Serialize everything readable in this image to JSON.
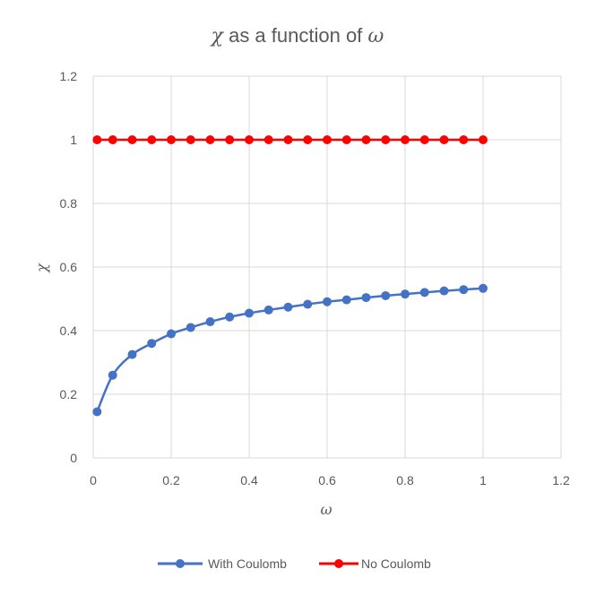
{
  "chart_data": {
    "type": "scatter",
    "title": {
      "symbol_a": "χ",
      "middle": " as a function of ",
      "symbol_b": "ω"
    },
    "xlabel": "ω",
    "ylabel": "χ",
    "xlim": [
      0,
      1.2
    ],
    "ylim": [
      0,
      1.2
    ],
    "x_ticks": [
      "0",
      "0.2",
      "0.4",
      "0.6",
      "0.8",
      "1",
      "1.2"
    ],
    "y_ticks": [
      "0",
      "0.2",
      "0.4",
      "0.6",
      "0.8",
      "1",
      "1.2"
    ],
    "grid": true,
    "legend_position": "bottom",
    "series": [
      {
        "name": "With Coulomb",
        "color": "#4472c4",
        "smooth": true,
        "x": [
          0.01,
          0.05,
          0.1,
          0.15,
          0.2,
          0.25,
          0.3,
          0.35,
          0.4,
          0.45,
          0.5,
          0.55,
          0.6,
          0.65,
          0.7,
          0.75,
          0.8,
          0.85,
          0.9,
          0.95,
          1.0
        ],
        "y": [
          0.145,
          0.26,
          0.325,
          0.36,
          0.39,
          0.41,
          0.428,
          0.443,
          0.455,
          0.465,
          0.474,
          0.483,
          0.491,
          0.497,
          0.504,
          0.51,
          0.515,
          0.52,
          0.525,
          0.529,
          0.533
        ]
      },
      {
        "name": "No Coulomb",
        "color": "#ff0000",
        "smooth": false,
        "x": [
          0.01,
          0.05,
          0.1,
          0.15,
          0.2,
          0.25,
          0.3,
          0.35,
          0.4,
          0.45,
          0.5,
          0.55,
          0.6,
          0.65,
          0.7,
          0.75,
          0.8,
          0.85,
          0.9,
          0.95,
          1.0
        ],
        "y": [
          1,
          1,
          1,
          1,
          1,
          1,
          1,
          1,
          1,
          1,
          1,
          1,
          1,
          1,
          1,
          1,
          1,
          1,
          1,
          1,
          1
        ]
      }
    ]
  }
}
